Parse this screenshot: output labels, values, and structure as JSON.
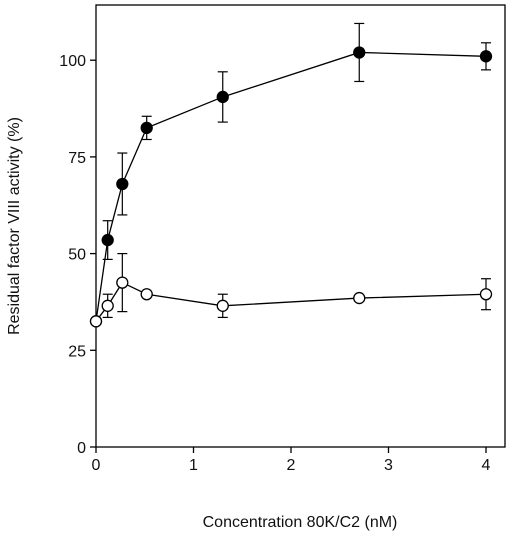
{
  "chart_data": {
    "type": "scatter",
    "title": "",
    "xlabel": "Concentration 80K/C2 (nM)",
    "ylabel": "Residual factor VIII activity (%)",
    "xlim": [
      0,
      4.25
    ],
    "ylim": [
      0,
      115
    ],
    "x_ticks": [
      0,
      1,
      2,
      3,
      4
    ],
    "y_ticks": [
      0,
      25,
      50,
      75,
      100
    ],
    "x_tick_labels": [
      "0",
      "1",
      "2",
      "3",
      "4"
    ],
    "y_tick_labels": [
      "0",
      "25",
      "50",
      "75",
      "100"
    ],
    "grid": false,
    "legend": "none",
    "series": [
      {
        "marker": "filled-circle",
        "color": "#000000",
        "x": [
          0,
          0.12,
          0.27,
          0.52,
          1.3,
          2.7,
          4.0
        ],
        "y": [
          32.5,
          53.5,
          68,
          82.5,
          90.5,
          102,
          101
        ],
        "err": [
          0,
          5,
          8,
          3,
          6.5,
          7.5,
          3.5
        ]
      },
      {
        "marker": "open-circle",
        "color": "#000000",
        "x": [
          0,
          0.12,
          0.27,
          0.52,
          1.3,
          2.7,
          4.0
        ],
        "y": [
          32.5,
          36.5,
          42.5,
          39.5,
          36.5,
          38.5,
          39.5
        ],
        "err": [
          0,
          3,
          7.5,
          0,
          3,
          0,
          4
        ]
      }
    ]
  }
}
